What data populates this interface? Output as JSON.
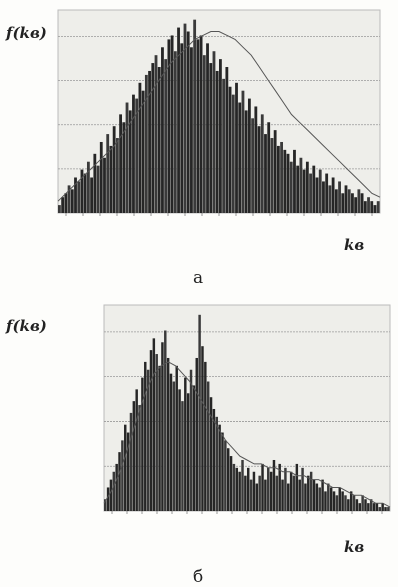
{
  "chart_data": [
    {
      "type": "bar",
      "ylabel": "f(kв)",
      "xlabel": "kв",
      "caption": "а",
      "x_range": [
        0,
        100
      ],
      "values": [
        2,
        4,
        5,
        7,
        6,
        9,
        8,
        11,
        10,
        13,
        9,
        15,
        12,
        18,
        14,
        20,
        17,
        22,
        19,
        25,
        23,
        28,
        26,
        30,
        29,
        33,
        31,
        35,
        36,
        38,
        40,
        37,
        42,
        39,
        44,
        45,
        41,
        47,
        43,
        48,
        46,
        42,
        49,
        44,
        45,
        40,
        43,
        38,
        41,
        36,
        39,
        34,
        37,
        32,
        30,
        33,
        28,
        31,
        26,
        29,
        24,
        27,
        22,
        25,
        20,
        23,
        19,
        21,
        17,
        18,
        16,
        15,
        13,
        16,
        12,
        14,
        11,
        13,
        10,
        12,
        9,
        11,
        8,
        10,
        7,
        9,
        6,
        8,
        5,
        7,
        6,
        5,
        4,
        6,
        5,
        3,
        4,
        3,
        2,
        3
      ],
      "curve": [
        3,
        5,
        7,
        9,
        11,
        13,
        15,
        17,
        20,
        23,
        26,
        29,
        32,
        35,
        38,
        40,
        42,
        44,
        45,
        46,
        46,
        45,
        44,
        42,
        40,
        37,
        34,
        31,
        28,
        25,
        23,
        21,
        19,
        17,
        15,
        13,
        11,
        9,
        7,
        5,
        4
      ]
    },
    {
      "type": "bar",
      "ylabel": "f(kв)",
      "xlabel": "kв",
      "caption": "б",
      "x_range": [
        0,
        100
      ],
      "values": [
        3,
        6,
        8,
        10,
        12,
        15,
        18,
        22,
        20,
        25,
        28,
        31,
        27,
        34,
        38,
        36,
        41,
        44,
        40,
        37,
        43,
        46,
        39,
        35,
        33,
        37,
        31,
        28,
        34,
        30,
        36,
        32,
        39,
        50,
        42,
        38,
        33,
        29,
        26,
        24,
        22,
        20,
        18,
        16,
        14,
        12,
        11,
        10,
        13,
        9,
        11,
        8,
        10,
        7,
        9,
        12,
        8,
        11,
        10,
        13,
        9,
        12,
        8,
        11,
        7,
        10,
        9,
        12,
        8,
        11,
        7,
        9,
        10,
        8,
        7,
        6,
        8,
        5,
        7,
        6,
        5,
        4,
        6,
        5,
        4,
        3,
        5,
        4,
        3,
        2,
        4,
        3,
        2,
        3,
        2,
        2,
        1,
        2,
        1,
        1
      ],
      "curve": [
        2,
        5,
        9,
        14,
        20,
        26,
        31,
        35,
        37,
        38,
        37,
        35,
        33,
        30,
        27,
        24,
        21,
        18,
        16,
        14,
        13,
        12,
        12,
        11,
        11,
        10,
        10,
        9,
        9,
        8,
        8,
        7,
        6,
        6,
        5,
        4,
        4,
        3,
        2,
        2,
        1
      ]
    }
  ]
}
